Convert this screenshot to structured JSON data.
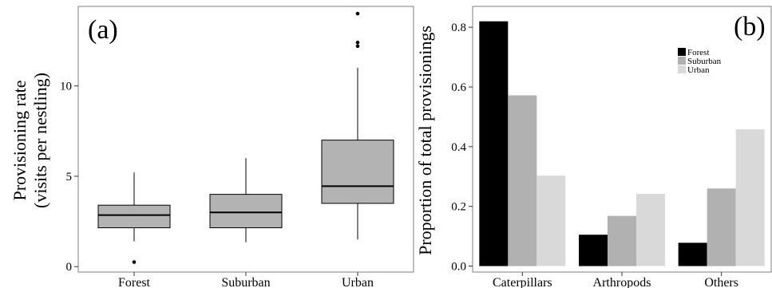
{
  "chart_data": [
    {
      "type": "box",
      "panel_label": "(a)",
      "title": "",
      "xlabel": "",
      "ylabel_line1": "Provisioning rate",
      "ylabel_line2": "(visits per nestling)",
      "ylim": [
        -0.3,
        14.4
      ],
      "yticks": [
        0,
        5,
        10
      ],
      "ytick_labels": [
        "0",
        "5",
        "10"
      ],
      "categories": [
        "Forest",
        "Suburban",
        "Urban"
      ],
      "boxes": [
        {
          "category": "Forest",
          "whisker_low": 1.4,
          "q1": 2.15,
          "median": 2.85,
          "q3": 3.4,
          "whisker_high": 5.2,
          "outliers": [
            0.25
          ]
        },
        {
          "category": "Suburban",
          "whisker_low": 1.35,
          "q1": 2.15,
          "median": 3.0,
          "q3": 4.0,
          "whisker_high": 6.0,
          "outliers": []
        },
        {
          "category": "Urban",
          "whisker_low": 1.5,
          "q1": 3.5,
          "median": 4.45,
          "q3": 7.0,
          "whisker_high": 11.0,
          "outliers": [
            12.2,
            12.4,
            14.0
          ]
        }
      ],
      "box_color": "#b3b3b4",
      "grid": false
    },
    {
      "type": "bar",
      "panel_label": "(b)",
      "title": "",
      "xlabel": "",
      "ylabel": "Proportion of total provisionings",
      "ylim": [
        -0.02,
        0.87
      ],
      "yticks": [
        0.0,
        0.2,
        0.4,
        0.6,
        0.8
      ],
      "ytick_labels": [
        "0.0",
        "0.2",
        "0.4",
        "0.6",
        "0.8"
      ],
      "categories": [
        "Caterpillars",
        "Arthropods",
        "Others"
      ],
      "series": [
        {
          "name": "Forest",
          "color": "#000000",
          "values": [
            0.82,
            0.105,
            0.078
          ]
        },
        {
          "name": "Suburban",
          "color": "#b1b1b2",
          "values": [
            0.572,
            0.168,
            0.26
          ]
        },
        {
          "name": "Urban",
          "color": "#d9d9da",
          "values": [
            0.303,
            0.242,
            0.458
          ]
        }
      ],
      "legend_position": "top-right",
      "grid": false
    }
  ]
}
